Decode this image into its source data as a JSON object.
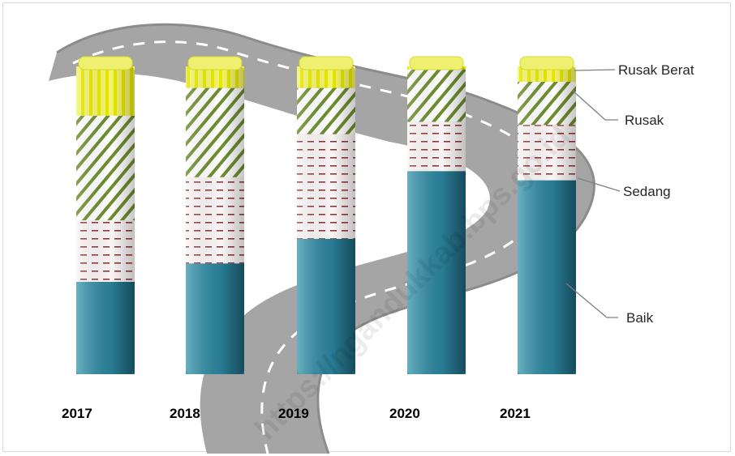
{
  "chart_data": {
    "type": "bar",
    "stacked": true,
    "percent": true,
    "categories": [
      "2017",
      "2018",
      "2019",
      "2020",
      "2021"
    ],
    "series": [
      {
        "name": "Baik",
        "values": [
          30,
          36,
          44,
          66,
          63
        ],
        "color": "#2a7f97"
      },
      {
        "name": "Sedang",
        "values": [
          20,
          28,
          34,
          16,
          18
        ],
        "color": "#f5ecec"
      },
      {
        "name": "Rusak",
        "values": [
          34,
          29,
          15,
          17,
          14
        ],
        "color": "#7a9a35"
      },
      {
        "name": "Rusak Berat",
        "values": [
          16,
          7,
          7,
          1,
          5
        ],
        "color": "#f2f22a"
      }
    ],
    "ylim": [
      0,
      100
    ],
    "legend_position": "right"
  },
  "watermark": "https://ngandukkab.bps.go.id"
}
